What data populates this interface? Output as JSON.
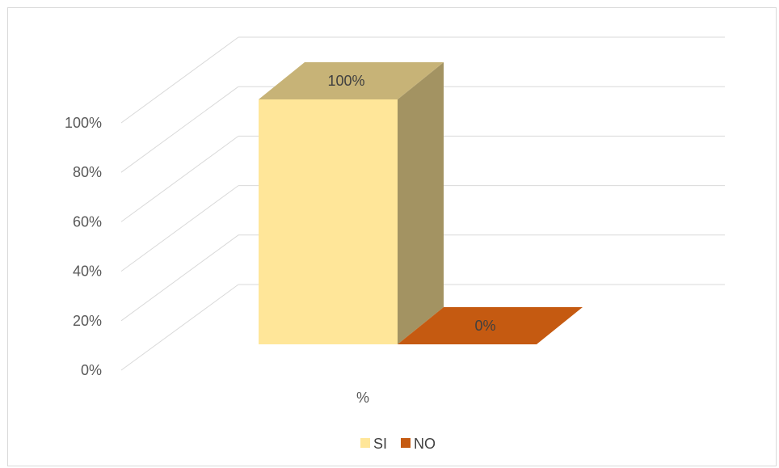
{
  "chart_data": {
    "type": "bar",
    "style": "3d-clustered-column",
    "categories": [
      "%"
    ],
    "series": [
      {
        "name": "SI",
        "values": [
          1.0
        ],
        "color": "#FFE699",
        "label": "100%"
      },
      {
        "name": "NO",
        "values": [
          0.0
        ],
        "color": "#C55A11",
        "label": "0%"
      }
    ],
    "yaxis": {
      "min": 0,
      "max": 1.0,
      "step": 0.2,
      "tick_labels": [
        "0%",
        "20%",
        "40%",
        "60%",
        "80%",
        "100%"
      ]
    },
    "grid": true,
    "legend": "bottom",
    "title": "",
    "xlabel": "",
    "ylabel": ""
  }
}
